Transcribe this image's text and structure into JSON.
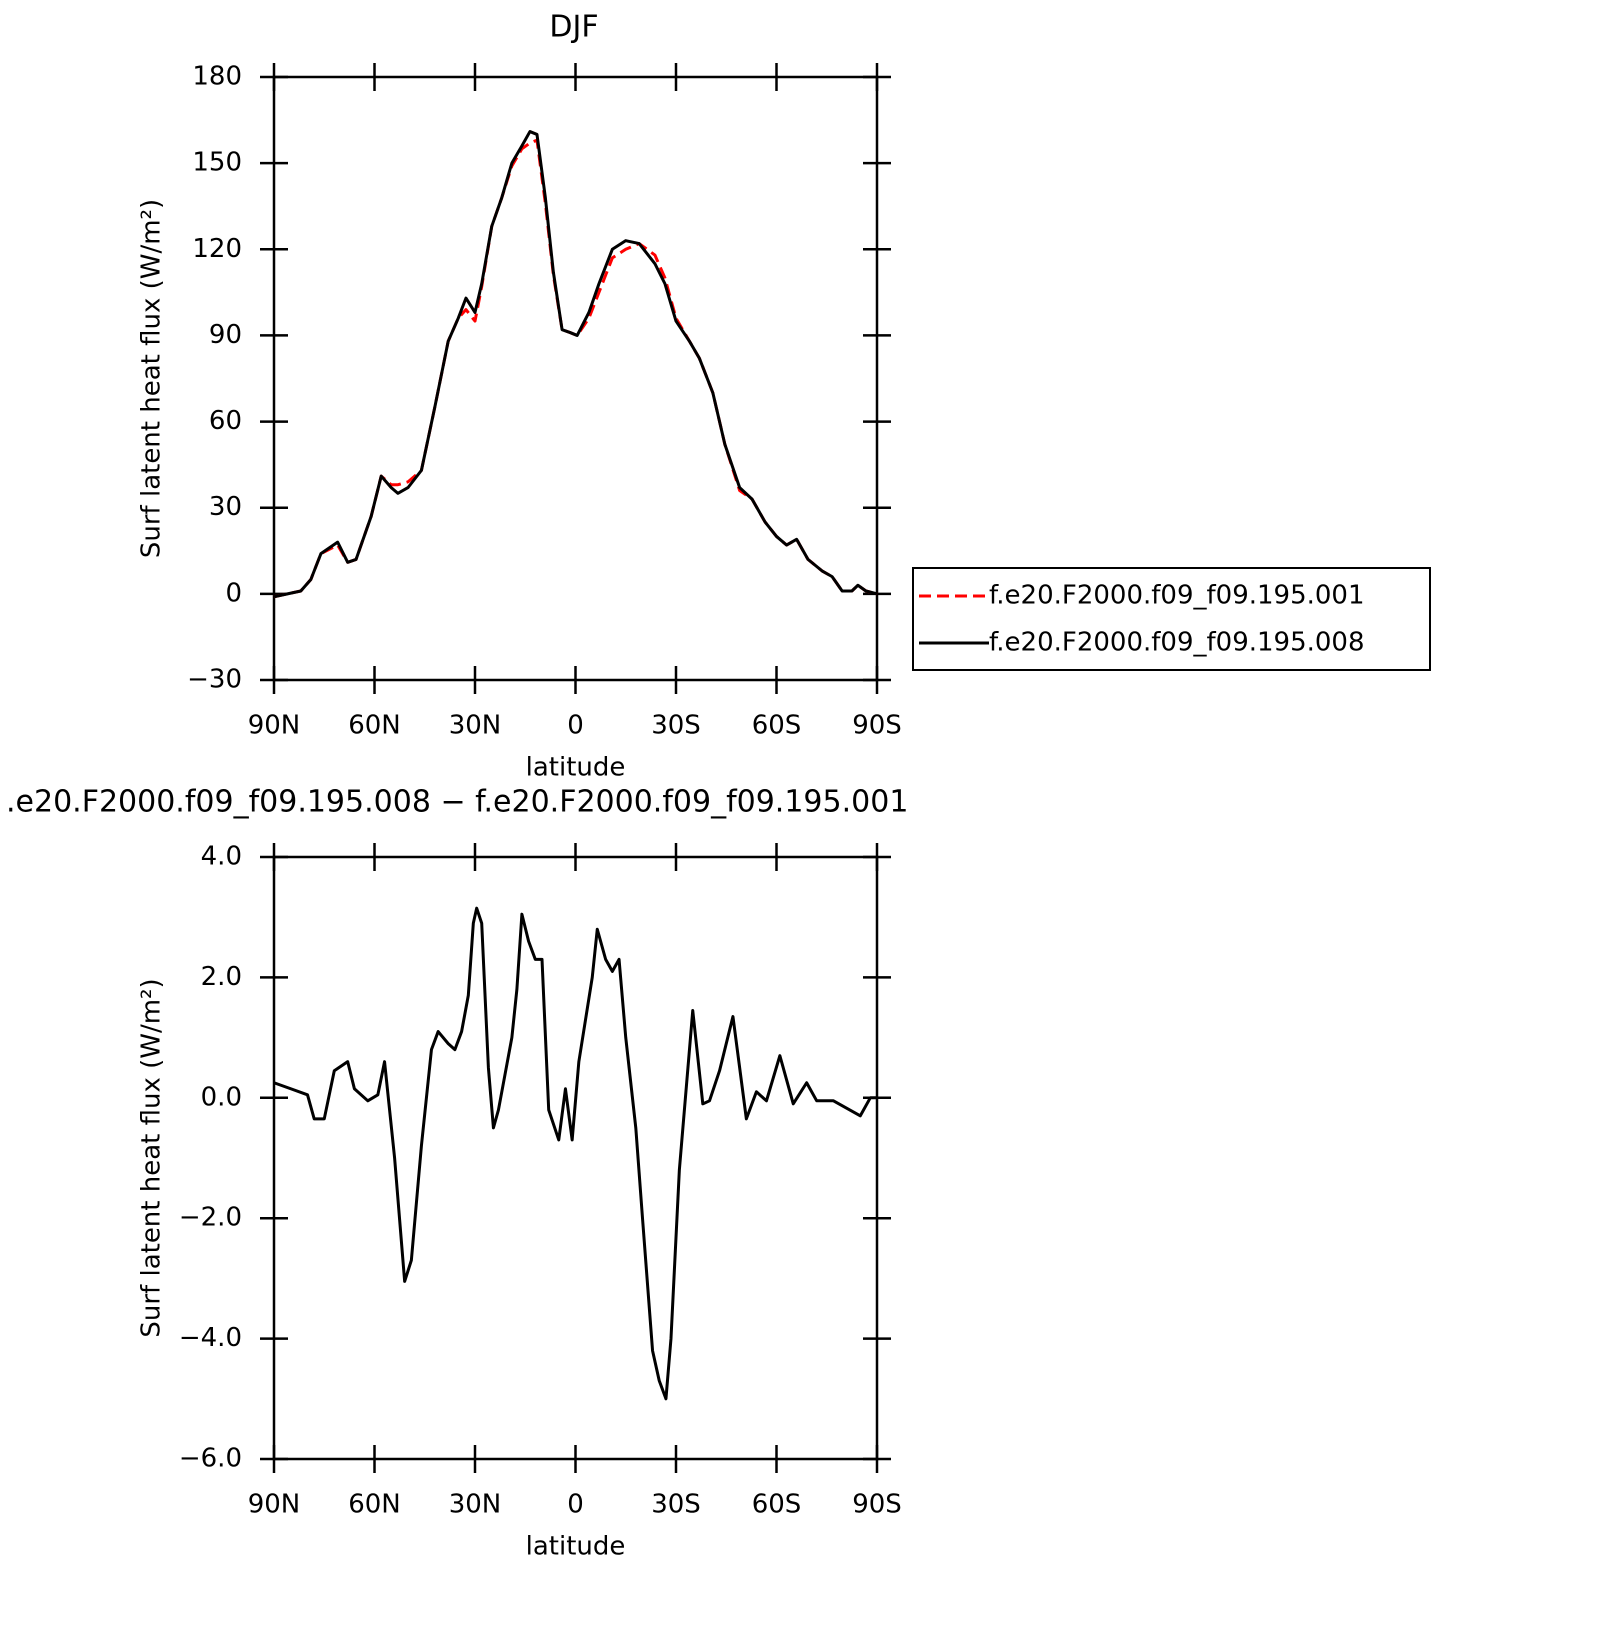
{
  "chart_data": [
    {
      "type": "line",
      "title": "DJF",
      "x_label": "latitude",
      "y_label": "Surf latent heat flux (W/m²)",
      "x": [
        90,
        82,
        79,
        76,
        71,
        68,
        65.5,
        61,
        58,
        55,
        53,
        50,
        46,
        42,
        38,
        35,
        32.7,
        30,
        28,
        25,
        22,
        19,
        16,
        13.6,
        11.5,
        9,
        6.6,
        4,
        1.6,
        -0.5,
        -4,
        -7,
        -11,
        -15,
        -19,
        -23.7,
        -26.7,
        -30,
        -34,
        -37,
        -41,
        -44.6,
        -49,
        -52.7,
        -56.6,
        -60,
        -63,
        -66,
        -69.4,
        -73.6,
        -76.6,
        -79.6,
        -82.5,
        -84.3,
        -86.7,
        -90
      ],
      "xlim": [
        90,
        -90
      ],
      "xticks": [
        {
          "value": 90,
          "label": "90N"
        },
        {
          "value": 60,
          "label": "60N"
        },
        {
          "value": 30,
          "label": "30N"
        },
        0,
        {
          "value": -30,
          "label": "30S"
        },
        {
          "value": -60,
          "label": "60S"
        },
        {
          "value": -90,
          "label": "90S"
        }
      ],
      "ylim": [
        -30,
        180
      ],
      "yticks": [
        {
          "value": -30,
          "label": "−30"
        },
        0,
        30,
        60,
        90,
        120,
        150,
        180
      ],
      "legend": "right",
      "series": [
        {
          "name": "f.e20.F2000.f09_f09.195.001",
          "color": "#ff0000",
          "line_style": "dashed",
          "values": [
            -1,
            1,
            5,
            14,
            17,
            11,
            12,
            27,
            41,
            38,
            38,
            39,
            43,
            65,
            88,
            96,
            99,
            95,
            107,
            128,
            138,
            149,
            155,
            157,
            158,
            136,
            111,
            92,
            91,
            90,
            96,
            105,
            117,
            120,
            122,
            118,
            110,
            96,
            88,
            82,
            70,
            52,
            36,
            33,
            25,
            20,
            17,
            19,
            12,
            8,
            6,
            1,
            1,
            3,
            1,
            0
          ]
        },
        {
          "name": "f.e20.F2000.f09_f09.195.008",
          "color": "#000000",
          "line_style": "solid",
          "values": [
            -1,
            1,
            5,
            14,
            18,
            11,
            12,
            27,
            41,
            37,
            35,
            37,
            43,
            65,
            88,
            96,
            103,
            98,
            108,
            128,
            138,
            150,
            156,
            161,
            160,
            138,
            112,
            92,
            91,
            90,
            98,
            108,
            120,
            123,
            122,
            115,
            108,
            95,
            88,
            82,
            70,
            52,
            37,
            33,
            25,
            20,
            17,
            19,
            12,
            8,
            6,
            1,
            1,
            3,
            1,
            0
          ]
        }
      ]
    },
    {
      "type": "line",
      "title": ".e20.F2000.f09_f09.195.008 − f.e20.F2000.f09_f09.195.001",
      "x_label": "latitude",
      "y_label": "Surf latent heat flux (W/m²)",
      "x": [
        90,
        85,
        80,
        78,
        75,
        72,
        68,
        66,
        62,
        59,
        57,
        54,
        51,
        49,
        46,
        43,
        41,
        38,
        36,
        34,
        32,
        30.5,
        29.5,
        28,
        26,
        24.5,
        23,
        21,
        19,
        17.5,
        16,
        14,
        12,
        10,
        8,
        5,
        3,
        1,
        -1,
        -5,
        -6.5,
        -9,
        -11,
        -13,
        -15,
        -18,
        -20,
        -23,
        -25,
        -27,
        -28.5,
        -31,
        -35,
        -38,
        -40,
        -43,
        -47,
        -51,
        -54,
        -57,
        -61,
        -65,
        -69,
        -72,
        -77,
        -85,
        -88,
        -90
      ],
      "xlim": [
        90,
        -90
      ],
      "xticks": [
        {
          "value": 90,
          "label": "90N"
        },
        {
          "value": 60,
          "label": "60N"
        },
        {
          "value": 30,
          "label": "30N"
        },
        0,
        {
          "value": -30,
          "label": "30S"
        },
        {
          "value": -60,
          "label": "60S"
        },
        {
          "value": -90,
          "label": "90S"
        }
      ],
      "ylim": [
        -6,
        4
      ],
      "yticks": [
        {
          "value": -6,
          "label": "−6.0"
        },
        {
          "value": -4,
          "label": "−4.0"
        },
        {
          "value": -2,
          "label": "−2.0"
        },
        {
          "value": 0,
          "label": "0.0"
        },
        {
          "value": 2,
          "label": "2.0"
        },
        {
          "value": 4,
          "label": "4.0"
        }
      ],
      "series": [
        {
          "color": "#000000",
          "line_style": "solid",
          "values": [
            0.25,
            0.15,
            0.05,
            -0.35,
            -0.35,
            0.45,
            0.6,
            0.15,
            -0.05,
            0.05,
            0.6,
            -1.0,
            -3.05,
            -2.7,
            -0.8,
            0.8,
            1.1,
            0.9,
            0.8,
            1.1,
            1.7,
            2.9,
            3.15,
            2.9,
            0.5,
            -0.5,
            -0.2,
            0.4,
            1.0,
            1.8,
            3.05,
            2.6,
            2.3,
            2.3,
            -0.2,
            -0.7,
            0.15,
            -0.7,
            0.6,
            2.0,
            2.8,
            2.3,
            2.1,
            2.3,
            1.0,
            -0.5,
            -2.0,
            -4.2,
            -4.7,
            -5.0,
            -4.0,
            -1.2,
            1.45,
            -0.1,
            -0.05,
            0.45,
            1.35,
            -0.35,
            0.1,
            -0.05,
            0.7,
            -0.1,
            0.25,
            -0.05,
            -0.05,
            -0.3,
            0.0,
            0.0
          ]
        }
      ]
    }
  ]
}
